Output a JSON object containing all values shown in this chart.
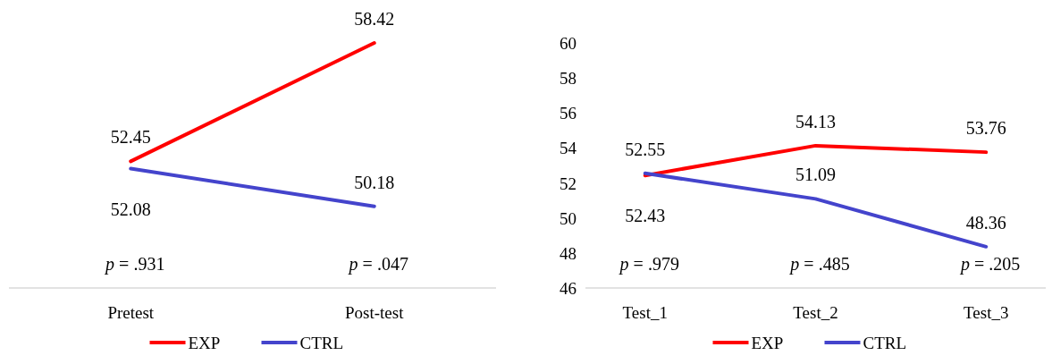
{
  "chart_data": [
    {
      "type": "line",
      "categories": [
        "Pretest",
        "Post-test"
      ],
      "series": [
        {
          "name": "EXP",
          "color": "#ff0000",
          "values": [
            52.45,
            58.42
          ]
        },
        {
          "name": "CTRL",
          "color": "#4444cc",
          "values": [
            52.08,
            50.18
          ]
        }
      ],
      "data_labels": true,
      "annotations": [
        "p = .931",
        "p = .047"
      ],
      "legend": "bottom",
      "tick_labels": "x"
    },
    {
      "type": "line",
      "categories": [
        "Test_1",
        "Test_2",
        "Test_3"
      ],
      "series": [
        {
          "name": "EXP",
          "color": "#ff0000",
          "values": [
            52.43,
            54.13,
            53.76
          ]
        },
        {
          "name": "CTRL",
          "color": "#4444cc",
          "values": [
            52.55,
            51.09,
            48.36
          ]
        }
      ],
      "data_labels": true,
      "annotations": [
        "p = .979",
        "p = .485",
        "p = .205"
      ],
      "legend": "bottom",
      "ylim": [
        46,
        60
      ],
      "yticks": [
        46,
        48,
        50,
        52,
        54,
        56,
        58,
        60
      ]
    }
  ]
}
